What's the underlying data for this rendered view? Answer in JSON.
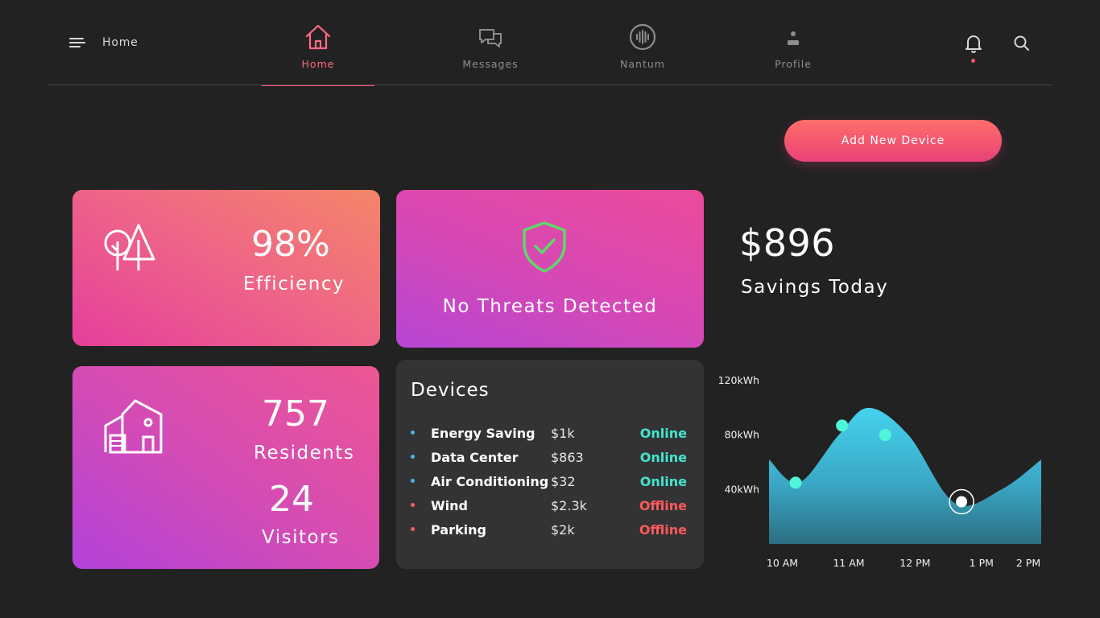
{
  "header": {
    "breadcrumb": "Home",
    "nav": [
      {
        "label": "Home",
        "icon": "home-icon",
        "active": true
      },
      {
        "label": "Messages",
        "icon": "messages-icon",
        "active": false
      },
      {
        "label": "Nantum",
        "icon": "nantum-icon",
        "active": false
      },
      {
        "label": "Profile",
        "icon": "profile-icon",
        "active": false
      }
    ],
    "accent_color": "#ff5577"
  },
  "actions": {
    "add_device_label": "Add New Device"
  },
  "efficiency": {
    "value": "98%",
    "label": "Efficiency",
    "icon": "trees-icon"
  },
  "security": {
    "label": "No Threats Detected",
    "icon": "shield-check-icon",
    "icon_color": "#5fd86a"
  },
  "residents": {
    "residents_value": "757",
    "residents_label": "Residents",
    "visitors_value": "24",
    "visitors_label": "Visitors",
    "icon": "building-icon"
  },
  "savings": {
    "value": "$896",
    "label": "Savings Today"
  },
  "devices": {
    "title": "Devices",
    "items": [
      {
        "name": "Energy Saving",
        "cost": "$1k",
        "status": "Online"
      },
      {
        "name": "Data Center",
        "cost": "$863",
        "status": "Online"
      },
      {
        "name": "Air Conditioning",
        "cost": "$32",
        "status": "Online"
      },
      {
        "name": "Wind",
        "cost": "$2.3k",
        "status": "Offline"
      },
      {
        "name": "Parking",
        "cost": "$2k",
        "status": "Offline"
      }
    ],
    "online_color": "#43e6d0",
    "offline_color": "#ff5a5a"
  },
  "chart_data": {
    "type": "area",
    "x": [
      "10 AM",
      "11 AM",
      "12 PM",
      "1 PM",
      "2 PM"
    ],
    "y_ticks": [
      "120kWh",
      "80kWh",
      "40kWh"
    ],
    "ylim": [
      0,
      120
    ],
    "curve": [
      [
        9.8,
        62
      ],
      [
        10.25,
        45
      ],
      [
        10.85,
        80
      ],
      [
        11.3,
        100
      ],
      [
        11.9,
        80
      ],
      [
        12.6,
        30
      ],
      [
        13.3,
        40
      ],
      [
        13.9,
        62
      ]
    ],
    "markers": [
      {
        "x": 10.2,
        "y": 45,
        "highlight": false
      },
      {
        "x": 10.9,
        "y": 87,
        "highlight": false
      },
      {
        "x": 11.55,
        "y": 80,
        "highlight": false
      },
      {
        "x": 12.7,
        "y": 31,
        "highlight": true
      }
    ],
    "grid": false,
    "fill_color": "#3fc8e4",
    "marker_color": "#4ff5d8"
  }
}
